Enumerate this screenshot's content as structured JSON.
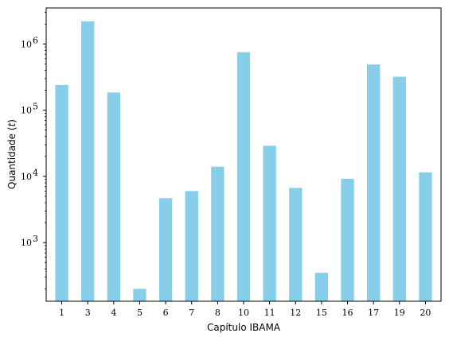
{
  "chart_data": {
    "type": "bar",
    "xlabel": "Capítulo IBAMA",
    "ylabel": "Quantidade (t)",
    "ylabel_unit_glyph": "t",
    "yscale": "log",
    "ylim": [
      130,
      3500000
    ],
    "y_ticks": [
      {
        "value": 1000,
        "label": "10",
        "exp": "3"
      },
      {
        "value": 10000,
        "label": "10",
        "exp": "4"
      },
      {
        "value": 100000,
        "label": "10",
        "exp": "5"
      },
      {
        "value": 1000000,
        "label": "10",
        "exp": "6"
      }
    ],
    "categories": [
      "1",
      "3",
      "4",
      "5",
      "6",
      "7",
      "8",
      "10",
      "11",
      "12",
      "15",
      "16",
      "17",
      "19",
      "20"
    ],
    "values": [
      240000,
      2200000,
      185000,
      200,
      4700,
      6000,
      14000,
      750000,
      29000,
      6700,
      350,
      9200,
      490000,
      320000,
      11500
    ],
    "bar_color": "#87CEEB",
    "grid": false,
    "legend": "none"
  }
}
